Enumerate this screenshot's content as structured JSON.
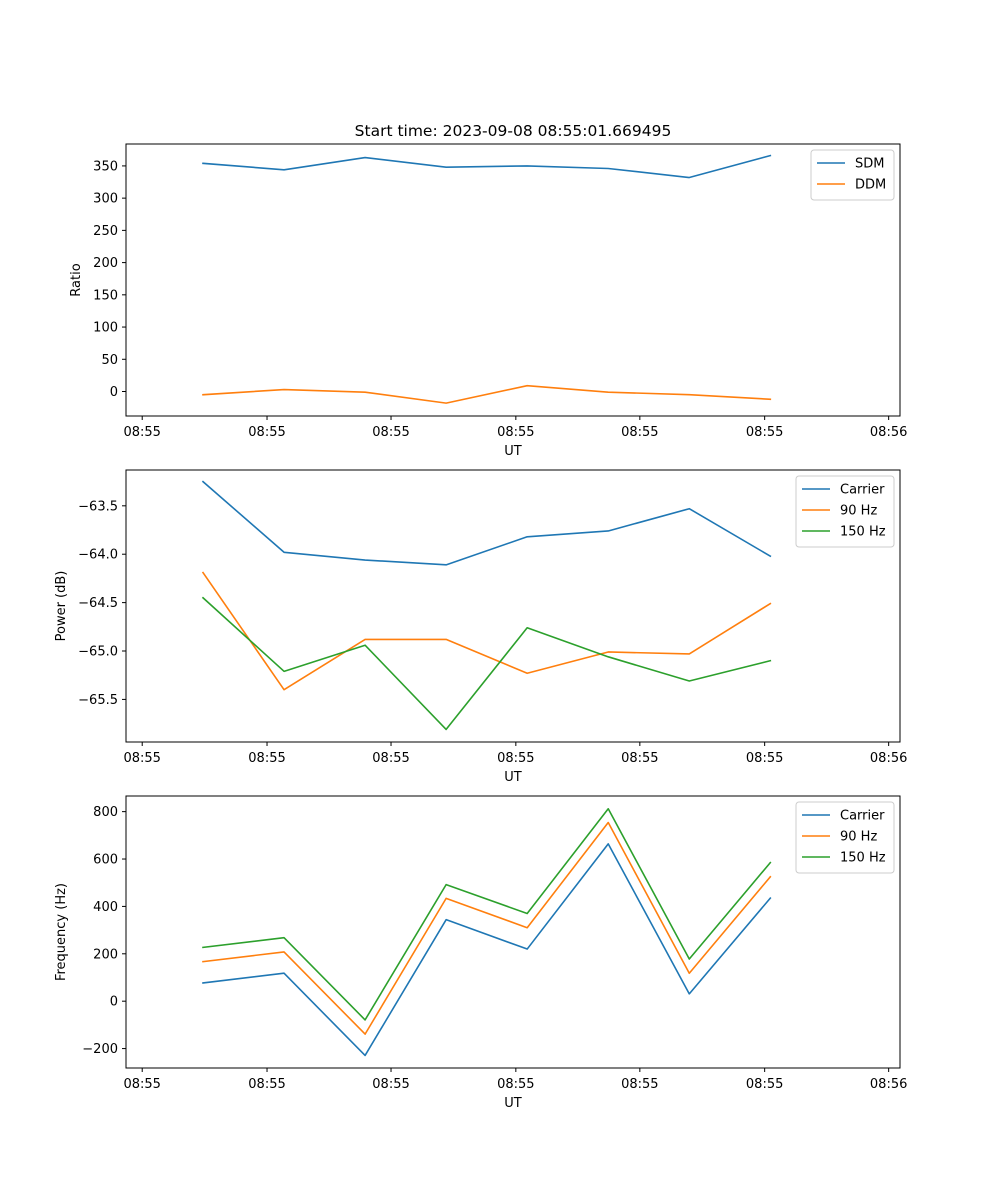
{
  "chart_data": [
    {
      "type": "line",
      "title": "Start time: 2023-09-08 08:55:01.669495",
      "xlabel": "UT",
      "ylabel": "Ratio",
      "xlim": [
        -0.95,
        8.6
      ],
      "ylim": [
        -38,
        384
      ],
      "x": [
        0,
        1,
        2,
        3,
        4,
        5,
        6,
        7
      ],
      "xticks": [
        -0.75,
        0.79,
        2.32,
        3.86,
        5.39,
        6.93,
        8.46
      ],
      "xtick_labels": [
        "08:55",
        "08:55",
        "08:55",
        "08:55",
        "08:55",
        "08:55",
        "08:56"
      ],
      "yticks": [
        0,
        50,
        100,
        150,
        200,
        250,
        300,
        350
      ],
      "ytick_labels": [
        "0",
        "50",
        "100",
        "150",
        "200",
        "250",
        "300",
        "350"
      ],
      "legend_position": "top-right",
      "series": [
        {
          "name": "SDM",
          "color": "#1f77b4",
          "values": [
            354,
            344,
            363,
            348,
            350,
            346,
            332,
            366
          ]
        },
        {
          "name": "DDM",
          "color": "#ff7f0e",
          "values": [
            -5,
            3,
            -1,
            -18,
            9,
            -1,
            -5,
            -12
          ]
        }
      ]
    },
    {
      "type": "line",
      "title": "",
      "xlabel": "UT",
      "ylabel": "Power (dB)",
      "xlim": [
        -0.95,
        8.6
      ],
      "ylim": [
        -65.94,
        -63.13
      ],
      "x": [
        0,
        1,
        2,
        3,
        4,
        5,
        6,
        7
      ],
      "xticks": [
        -0.75,
        0.79,
        2.32,
        3.86,
        5.39,
        6.93,
        8.46
      ],
      "xtick_labels": [
        "08:55",
        "08:55",
        "08:55",
        "08:55",
        "08:55",
        "08:55",
        "08:56"
      ],
      "yticks": [
        -65.5,
        -65.0,
        -64.5,
        -64.0,
        -63.5
      ],
      "ytick_labels": [
        "−65.5",
        "−65.0",
        "−64.5",
        "−64.0",
        "−63.5"
      ],
      "legend_position": "top-right",
      "series": [
        {
          "name": "Carrier",
          "color": "#1f77b4",
          "values": [
            -63.25,
            -63.98,
            -64.06,
            -64.11,
            -63.82,
            -63.76,
            -63.53,
            -64.02
          ]
        },
        {
          "name": "90 Hz",
          "color": "#ff7f0e",
          "values": [
            -64.19,
            -65.4,
            -64.88,
            -64.88,
            -65.23,
            -65.01,
            -65.03,
            -64.51
          ]
        },
        {
          "name": "150 Hz",
          "color": "#2ca02c",
          "values": [
            -64.45,
            -65.21,
            -64.94,
            -65.81,
            -64.76,
            -65.06,
            -65.31,
            -65.1
          ]
        }
      ]
    },
    {
      "type": "line",
      "title": "",
      "xlabel": "UT",
      "ylabel": "Frequency (Hz)",
      "xlim": [
        -0.95,
        8.6
      ],
      "ylim": [
        -282,
        866
      ],
      "x": [
        0,
        1,
        2,
        3,
        4,
        5,
        6,
        7
      ],
      "xticks": [
        -0.75,
        0.79,
        2.32,
        3.86,
        5.39,
        6.93,
        8.46
      ],
      "xtick_labels": [
        "08:55",
        "08:55",
        "08:55",
        "08:55",
        "08:55",
        "08:55",
        "08:56"
      ],
      "yticks": [
        -200,
        0,
        200,
        400,
        600,
        800
      ],
      "ytick_labels": [
        "−200",
        "0",
        "200",
        "400",
        "600",
        "800"
      ],
      "legend_position": "top-right",
      "series": [
        {
          "name": "Carrier",
          "color": "#1f77b4",
          "values": [
            77,
            118,
            -229,
            344,
            220,
            664,
            31,
            435
          ]
        },
        {
          "name": "90 Hz",
          "color": "#ff7f0e",
          "values": [
            167,
            208,
            -139,
            434,
            310,
            754,
            118,
            525
          ]
        },
        {
          "name": "150 Hz",
          "color": "#2ca02c",
          "values": [
            227,
            268,
            -79,
            492,
            370,
            812,
            178,
            585
          ]
        }
      ]
    }
  ]
}
